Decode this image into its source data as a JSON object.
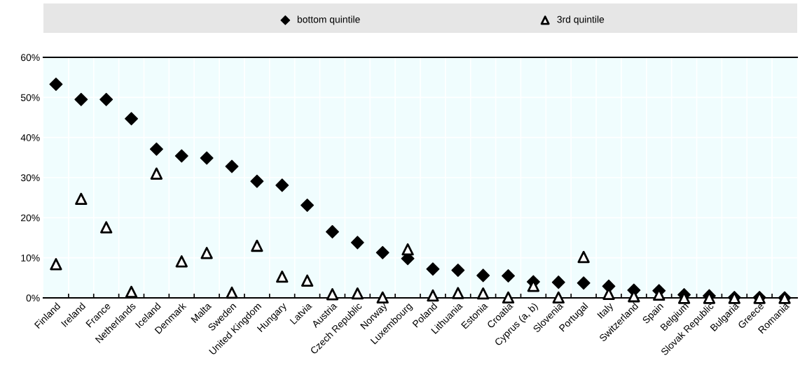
{
  "chart_data": {
    "type": "scatter",
    "categories": [
      "Finland",
      "Ireland",
      "France",
      "Netherlands",
      "Iceland",
      "Denmark",
      "Malta",
      "Sweden",
      "United Kingdom",
      "Hungary",
      "Latvia",
      "Austria",
      "Czech Republic",
      "Norway",
      "Luxembourg",
      "Poland",
      "Lithuania",
      "Estonia",
      "Croatia",
      "Cyprus (a, b)",
      "Slovenia",
      "Portugal",
      "Italy",
      "Switzerland",
      "Spain",
      "Belgium",
      "Slovak Republic",
      "Bulgaria",
      "Greece",
      "Romania"
    ],
    "series": [
      {
        "name": "bottom quintile",
        "color": "#000000",
        "marker": "diamond",
        "values": [
          53.3,
          49.5,
          49.5,
          44.7,
          37.1,
          35.4,
          34.9,
          32.8,
          29.1,
          28.1,
          23.1,
          16.5,
          13.8,
          11.3,
          9.8,
          7.2,
          6.9,
          5.6,
          5.5,
          4.0,
          3.9,
          3.7,
          2.9,
          1.9,
          1.8,
          0.8,
          0.5,
          0.1,
          0.1,
          0.0
        ]
      },
      {
        "name": "3rd quintile",
        "color": "#000000",
        "marker": "triangle",
        "values": [
          8.4,
          24.7,
          17.6,
          1.5,
          31.0,
          9.1,
          11.2,
          1.3,
          13.0,
          5.3,
          4.3,
          0.9,
          1.1,
          0.1,
          12.1,
          0.6,
          1.2,
          1.1,
          0.1,
          3.0,
          0.1,
          10.2,
          1.0,
          0.4,
          0.8,
          0.0,
          0.0,
          0.0,
          0.0,
          0.0
        ]
      }
    ],
    "ylim": [
      0,
      60
    ],
    "yticks": [
      {
        "value": 0,
        "label": "0%"
      },
      {
        "value": 10,
        "label": "10%"
      },
      {
        "value": 20,
        "label": "20%"
      },
      {
        "value": 30,
        "label": "30%"
      },
      {
        "value": 40,
        "label": "40%"
      },
      {
        "value": 50,
        "label": "50%"
      },
      {
        "value": 60,
        "label": "60%"
      }
    ],
    "grid": true,
    "legend": "top"
  }
}
